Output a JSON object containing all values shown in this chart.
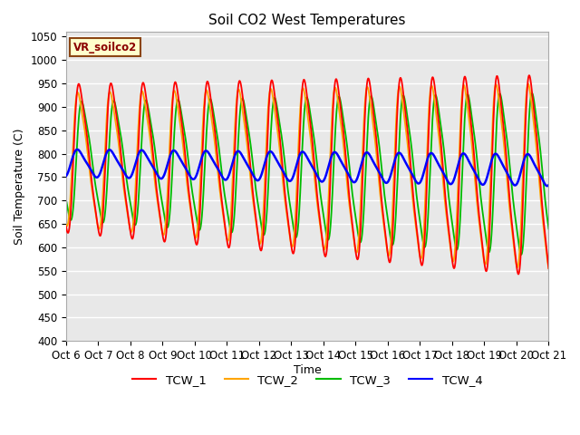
{
  "title": "Soil CO2 West Temperatures",
  "xlabel": "Time",
  "ylabel": "Soil Temperature (C)",
  "ylim": [
    400,
    1060
  ],
  "xlim": [
    0,
    15
  ],
  "xtick_labels": [
    "Oct 6",
    "Oct 7",
    "Oct 8",
    "Oct 9",
    "Oct 10",
    "Oct 11",
    "Oct 12",
    "Oct 13",
    "Oct 14",
    "Oct 15",
    "Oct 16",
    "Oct 17",
    "Oct 18",
    "Oct 19",
    "Oct 20",
    "Oct 21"
  ],
  "ytick_vals": [
    400,
    450,
    500,
    550,
    600,
    650,
    700,
    750,
    800,
    850,
    900,
    950,
    1000,
    1050
  ],
  "legend_label": "VR_soilco2",
  "series": [
    {
      "name": "TCW_1",
      "color": "#ff0000"
    },
    {
      "name": "TCW_2",
      "color": "#ffa500"
    },
    {
      "name": "TCW_3",
      "color": "#00bb00"
    },
    {
      "name": "TCW_4",
      "color": "#0000ff"
    }
  ],
  "background_color": "#ffffff",
  "plot_bg_color": "#e8e8e8",
  "title_fontsize": 11,
  "axis_label_fontsize": 9,
  "tick_fontsize": 8.5
}
